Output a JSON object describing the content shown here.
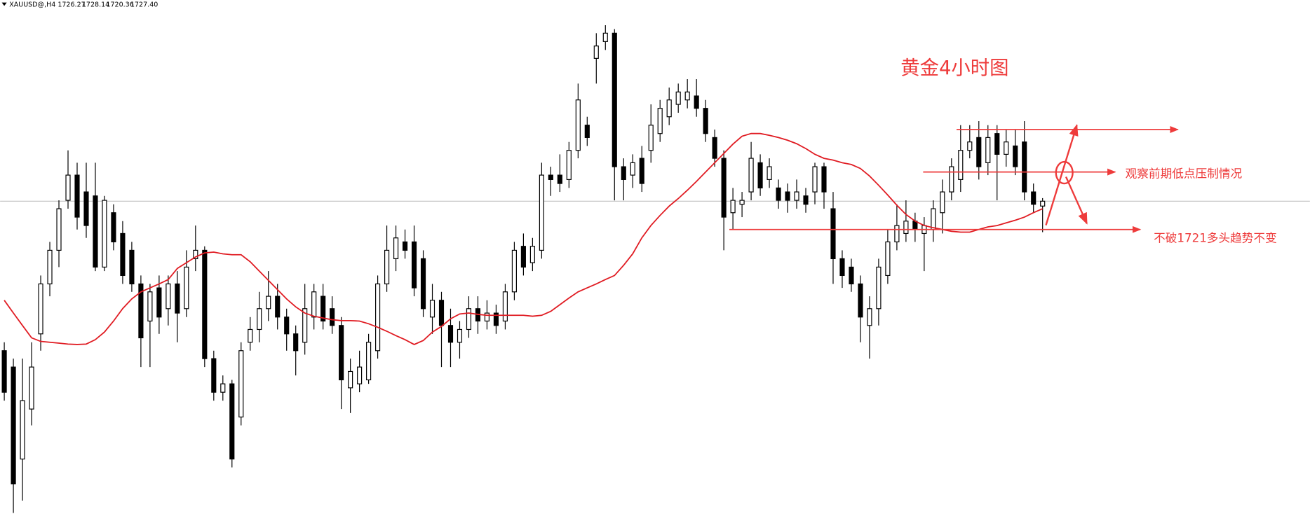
{
  "chart_data": {
    "type": "candlestick",
    "symbol": "XAUUSD@,H4",
    "quote": [
      1726.27,
      1728.14,
      1720.36,
      {
        "value": 1727.4,
        "label": "1727.40"
      }
    ],
    "title": "黄金4小时图",
    "ylim": [
      1653.5,
      1772.9
    ],
    "candle_color": "#000000",
    "ohlc": [
      [
        1693.6,
        1695.5,
        1682.3,
        1684.2
      ],
      [
        1689.9,
        1691.8,
        1656.9,
        1663.5
      ],
      [
        1669.1,
        1691.8,
        1659.7,
        1682.3
      ],
      [
        1680.4,
        1695.5,
        1676.7,
        1689.9
      ],
      [
        1697.4,
        1710.6,
        1693.6,
        1708.7
      ],
      [
        1708.7,
        1718.2,
        1705.9,
        1716.3
      ],
      [
        1716.3,
        1727.6,
        1712.5,
        1725.7
      ],
      [
        1727.6,
        1738.9,
        1725.7,
        1733.3
      ],
      [
        1733.3,
        1736.1,
        1721.0,
        1723.8
      ],
      [
        1729.5,
        1736.1,
        1719.1,
        1721.9
      ],
      [
        1728.6,
        1736.1,
        1711.6,
        1712.5
      ],
      [
        1712.5,
        1728.6,
        1711.6,
        1727.6
      ],
      [
        1724.8,
        1726.7,
        1716.3,
        1718.2
      ],
      [
        1720.1,
        1722.9,
        1708.7,
        1710.6
      ],
      [
        1716.3,
        1718.2,
        1706.9,
        1708.7
      ],
      [
        1708.7,
        1710.6,
        1689.9,
        1696.5
      ],
      [
        1700.3,
        1708.7,
        1689.9,
        1706.9
      ],
      [
        1707.8,
        1710.6,
        1697.4,
        1701.2
      ],
      [
        1703.1,
        1710.6,
        1699.3,
        1708.7
      ],
      [
        1708.7,
        1711.6,
        1695.5,
        1702.1
      ],
      [
        1703.1,
        1716.3,
        1701.2,
        1712.5
      ],
      [
        1714.4,
        1721.9,
        1711.6,
        1716.3
      ],
      [
        1716.3,
        1717.2,
        1689.9,
        1691.8
      ],
      [
        1691.8,
        1693.6,
        1682.3,
        1684.2
      ],
      [
        1684.2,
        1688.0,
        1682.3,
        1686.1
      ],
      [
        1686.1,
        1687.0,
        1667.2,
        1669.1
      ],
      [
        1678.6,
        1695.5,
        1676.7,
        1693.6
      ],
      [
        1695.5,
        1701.2,
        1693.6,
        1698.4
      ],
      [
        1698.4,
        1706.9,
        1695.5,
        1703.1
      ],
      [
        1703.1,
        1711.6,
        1700.3,
        1705.9
      ],
      [
        1705.9,
        1708.7,
        1698.4,
        1701.2
      ],
      [
        1701.2,
        1703.1,
        1693.6,
        1697.4
      ],
      [
        1697.4,
        1699.3,
        1688.0,
        1693.6
      ],
      [
        1695.5,
        1708.7,
        1692.7,
        1703.1
      ],
      [
        1701.2,
        1708.7,
        1698.4,
        1706.9
      ],
      [
        1705.9,
        1708.7,
        1698.4,
        1700.3
      ],
      [
        1703.1,
        1705.9,
        1697.4,
        1699.3
      ],
      [
        1699.3,
        1701.2,
        1680.4,
        1687.0
      ],
      [
        1685.2,
        1691.8,
        1679.5,
        1688.9
      ],
      [
        1686.1,
        1693.6,
        1684.2,
        1689.9
      ],
      [
        1687.0,
        1697.4,
        1686.1,
        1695.5
      ],
      [
        1693.6,
        1710.6,
        1691.8,
        1708.7
      ],
      [
        1708.7,
        1721.9,
        1706.9,
        1716.3
      ],
      [
        1714.4,
        1721.9,
        1711.6,
        1719.1
      ],
      [
        1718.2,
        1721.0,
        1714.4,
        1716.3
      ],
      [
        1718.2,
        1721.9,
        1705.9,
        1707.8
      ],
      [
        1714.4,
        1716.3,
        1701.2,
        1703.1
      ],
      [
        1701.2,
        1708.7,
        1697.4,
        1705.0
      ],
      [
        1705.0,
        1706.9,
        1689.9,
        1699.3
      ],
      [
        1699.3,
        1703.1,
        1689.9,
        1695.5
      ],
      [
        1695.5,
        1700.3,
        1691.8,
        1698.4
      ],
      [
        1698.4,
        1705.9,
        1696.5,
        1703.1
      ],
      [
        1703.1,
        1705.9,
        1697.4,
        1700.3
      ],
      [
        1700.3,
        1705.0,
        1698.4,
        1702.1
      ],
      [
        1702.1,
        1704.0,
        1697.4,
        1699.3
      ],
      [
        1700.3,
        1708.7,
        1698.4,
        1706.9
      ],
      [
        1706.9,
        1718.2,
        1705.0,
        1716.3
      ],
      [
        1717.2,
        1720.1,
        1710.6,
        1712.5
      ],
      [
        1713.5,
        1719.1,
        1711.6,
        1717.2
      ],
      [
        1716.3,
        1736.1,
        1714.4,
        1733.3
      ],
      [
        1733.3,
        1735.2,
        1728.6,
        1732.3
      ],
      [
        1733.3,
        1738.0,
        1729.5,
        1731.4
      ],
      [
        1732.3,
        1740.8,
        1730.4,
        1738.9
      ],
      [
        1738.9,
        1754.0,
        1737.1,
        1750.3
      ],
      [
        1744.6,
        1746.5,
        1739.9,
        1741.8
      ],
      [
        1759.7,
        1765.4,
        1754.0,
        1762.5
      ],
      [
        1763.5,
        1767.2,
        1761.6,
        1765.4
      ],
      [
        1765.4,
        1766.3,
        1727.6,
        1735.2
      ],
      [
        1735.2,
        1737.1,
        1727.6,
        1732.3
      ],
      [
        1733.3,
        1738.0,
        1730.4,
        1736.1
      ],
      [
        1737.1,
        1739.9,
        1729.5,
        1731.4
      ],
      [
        1738.9,
        1749.3,
        1736.1,
        1744.6
      ],
      [
        1742.7,
        1750.3,
        1740.8,
        1748.4
      ],
      [
        1746.5,
        1753.1,
        1744.6,
        1750.3
      ],
      [
        1749.3,
        1754.0,
        1747.4,
        1752.1
      ],
      [
        1750.3,
        1755.0,
        1748.4,
        1752.1
      ],
      [
        1751.2,
        1755.0,
        1746.5,
        1748.4
      ],
      [
        1748.4,
        1750.3,
        1740.8,
        1742.7
      ],
      [
        1741.8,
        1743.6,
        1735.2,
        1737.1
      ],
      [
        1737.1,
        1738.9,
        1716.3,
        1723.8
      ],
      [
        1724.8,
        1730.4,
        1721.0,
        1727.6
      ],
      [
        1726.7,
        1729.5,
        1723.8,
        1727.6
      ],
      [
        1729.5,
        1740.8,
        1727.6,
        1737.1
      ],
      [
        1736.1,
        1738.0,
        1728.6,
        1730.4
      ],
      [
        1732.3,
        1737.1,
        1730.4,
        1735.2
      ],
      [
        1730.4,
        1732.3,
        1725.7,
        1727.6
      ],
      [
        1729.5,
        1731.4,
        1724.8,
        1727.6
      ],
      [
        1727.6,
        1732.3,
        1725.7,
        1729.5
      ],
      [
        1728.6,
        1730.4,
        1724.8,
        1726.7
      ],
      [
        1729.5,
        1736.1,
        1726.7,
        1735.2
      ],
      [
        1735.2,
        1736.1,
        1725.7,
        1729.5
      ],
      [
        1725.7,
        1729.5,
        1708.7,
        1714.4
      ],
      [
        1714.4,
        1716.3,
        1707.8,
        1710.6
      ],
      [
        1712.5,
        1714.4,
        1706.9,
        1708.7
      ],
      [
        1708.7,
        1710.6,
        1695.5,
        1701.2
      ],
      [
        1699.3,
        1705.9,
        1691.8,
        1703.1
      ],
      [
        1703.1,
        1714.4,
        1699.3,
        1712.5
      ],
      [
        1710.6,
        1721.0,
        1708.7,
        1718.2
      ],
      [
        1718.2,
        1726.7,
        1716.3,
        1721.9
      ],
      [
        1720.1,
        1727.6,
        1718.2,
        1722.9
      ],
      [
        1722.9,
        1724.8,
        1718.2,
        1721.0
      ],
      [
        1720.1,
        1723.8,
        1711.6,
        1721.9
      ],
      [
        1721.0,
        1727.6,
        1718.2,
        1725.7
      ],
      [
        1724.8,
        1732.3,
        1720.1,
        1729.5
      ],
      [
        1729.5,
        1737.1,
        1727.6,
        1735.2
      ],
      [
        1732.3,
        1744.6,
        1729.5,
        1738.9
      ],
      [
        1738.9,
        1744.6,
        1737.1,
        1740.8
      ],
      [
        1741.8,
        1745.5,
        1732.3,
        1735.2
      ],
      [
        1736.1,
        1744.6,
        1733.3,
        1741.8
      ],
      [
        1742.7,
        1744.6,
        1727.6,
        1738.0
      ],
      [
        1738.0,
        1743.6,
        1735.2,
        1740.8
      ],
      [
        1739.9,
        1743.6,
        1733.3,
        1735.2
      ],
      [
        1740.8,
        1745.5,
        1727.6,
        1729.5
      ],
      [
        1729.5,
        1731.4,
        1724.8,
        1726.7
      ],
      [
        1726.3,
        1728.1,
        1720.4,
        1727.4
      ]
    ],
    "ma": {
      "color": "#e01b22",
      "values": [
        1705.0,
        1702.1,
        1699.3,
        1696.5,
        1695.7,
        1695.5,
        1695.3,
        1695.1,
        1695.0,
        1695.1,
        1696.1,
        1697.8,
        1700.3,
        1703.1,
        1705.3,
        1706.9,
        1707.8,
        1708.7,
        1709.7,
        1712.2,
        1713.5,
        1714.8,
        1715.7,
        1715.9,
        1715.5,
        1715.3,
        1715.3,
        1713.7,
        1711.6,
        1709.5,
        1707.4,
        1705.3,
        1703.5,
        1702.1,
        1701.4,
        1701.0,
        1700.6,
        1700.4,
        1700.4,
        1700.3,
        1699.7,
        1698.9,
        1698.0,
        1697.0,
        1696.1,
        1695.0,
        1695.9,
        1697.8,
        1699.1,
        1700.8,
        1701.9,
        1702.1,
        1701.8,
        1701.6,
        1701.6,
        1701.6,
        1701.6,
        1701.6,
        1701.4,
        1701.6,
        1702.5,
        1704.0,
        1705.5,
        1706.9,
        1707.8,
        1708.7,
        1709.7,
        1710.6,
        1712.9,
        1715.5,
        1719.1,
        1721.9,
        1724.2,
        1726.3,
        1728.0,
        1729.9,
        1731.9,
        1734.0,
        1736.1,
        1738.2,
        1740.3,
        1742.1,
        1742.7,
        1742.7,
        1742.3,
        1741.8,
        1741.2,
        1740.4,
        1739.3,
        1738.0,
        1737.1,
        1736.7,
        1736.1,
        1735.7,
        1734.8,
        1733.1,
        1731.0,
        1728.8,
        1726.5,
        1724.4,
        1722.9,
        1721.9,
        1721.4,
        1721.0,
        1720.6,
        1720.4,
        1720.4,
        1721.0,
        1721.6,
        1721.9,
        1722.5,
        1723.1,
        1723.8,
        1724.8,
        1725.7
      ]
    },
    "levels": [
      1743.6,
      1734.0,
      1721
    ],
    "level_color": "#ee3b3b",
    "annotations": [
      "观察前期低点压制情况",
      "不破1721多头趋势不变"
    ]
  }
}
